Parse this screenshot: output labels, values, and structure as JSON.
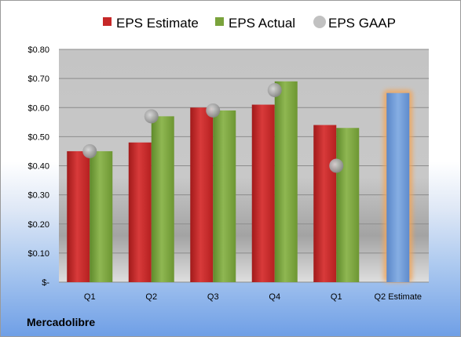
{
  "company": "Mercadolibre",
  "colors": {
    "estimate": "#c62828",
    "actual": "#7aa33c",
    "gaap": "#a6a6a6",
    "forecast_bar": "#6f9ad6",
    "forecast_glow": "#f2a65a"
  },
  "chart_data": {
    "type": "bar",
    "categories": [
      "Q1",
      "Q2",
      "Q3",
      "Q4",
      "Q1",
      "Q2 Estimate"
    ],
    "series": [
      {
        "name": "EPS Estimate",
        "values": [
          0.45,
          0.48,
          0.6,
          0.61,
          0.54,
          null
        ]
      },
      {
        "name": "EPS Actual",
        "values": [
          0.45,
          0.57,
          0.59,
          0.69,
          0.53,
          null
        ]
      },
      {
        "name": "EPS GAAP",
        "values": [
          0.45,
          0.57,
          0.59,
          0.66,
          0.4,
          null
        ]
      }
    ],
    "forecast": {
      "category": "Q2 Estimate",
      "value": 0.65
    },
    "ylim": [
      0,
      0.8
    ],
    "yticks": [
      0,
      0.1,
      0.2,
      0.3,
      0.4,
      0.5,
      0.6,
      0.7,
      0.8
    ],
    "ytick_labels": [
      "$-",
      "$0.10",
      "$0.20",
      "$0.30",
      "$0.40",
      "$0.50",
      "$0.60",
      "$0.70",
      "$0.80"
    ],
    "grid": true,
    "legend": "top"
  }
}
